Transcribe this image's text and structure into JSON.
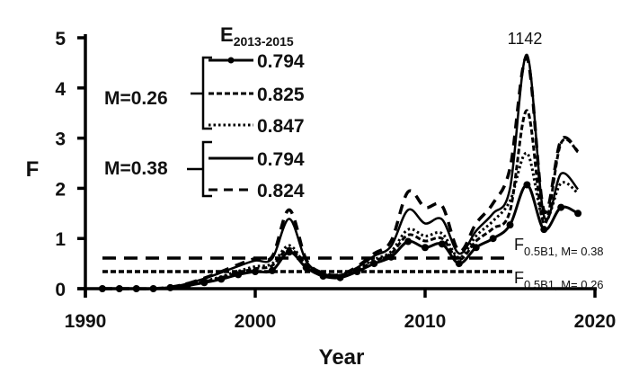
{
  "chart_data": {
    "type": "line",
    "title": "",
    "xlabel": "Year",
    "ylabel": "F",
    "xlim": [
      1990,
      2020
    ],
    "ylim": [
      0,
      5
    ],
    "xticks": [
      1990,
      2000,
      2010,
      2020
    ],
    "yticks": [
      0,
      1,
      2,
      3,
      4,
      5
    ],
    "grid": false,
    "legend_title": "E2013-2015",
    "legend_title_main": "E",
    "legend_title_sub": "2013-2015",
    "legend_position": "upper-left",
    "x": [
      1991,
      1992,
      1993,
      1994,
      1995,
      1996,
      1997,
      1998,
      1999,
      2000,
      2001,
      2002,
      2003,
      2004,
      2005,
      2006,
      2007,
      2008,
      2009,
      2010,
      2011,
      2012,
      2013,
      2014,
      2015,
      2016,
      2017,
      2018,
      2019
    ],
    "series": [
      {
        "name": "M=0.26, E=0.794",
        "group": "M=0.26",
        "e_label": "0.794",
        "style": "solid-markers",
        "values": [
          0,
          0,
          0,
          0,
          0.02,
          0.06,
          0.12,
          0.19,
          0.28,
          0.34,
          0.36,
          0.73,
          0.42,
          0.25,
          0.22,
          0.34,
          0.5,
          0.63,
          0.94,
          0.82,
          0.89,
          0.5,
          0.82,
          1.0,
          1.27,
          2.07,
          1.18,
          1.62,
          1.5
        ]
      },
      {
        "name": "M=0.26, E=0.825",
        "group": "M=0.26",
        "e_label": "0.825",
        "style": "short-dash",
        "values": [
          0,
          0,
          0,
          0,
          0.02,
          0.07,
          0.14,
          0.22,
          0.32,
          0.4,
          0.46,
          0.8,
          0.45,
          0.27,
          0.24,
          0.37,
          0.55,
          0.7,
          1.07,
          0.95,
          1.0,
          0.58,
          0.95,
          1.2,
          1.55,
          3.55,
          1.3,
          2.9,
          2.73
        ]
      },
      {
        "name": "M=0.26, E=0.847",
        "group": "M=0.26",
        "e_label": "0.847",
        "style": "dotted",
        "values": [
          0,
          0,
          0,
          0,
          0.02,
          0.07,
          0.15,
          0.24,
          0.35,
          0.44,
          0.5,
          0.86,
          0.47,
          0.28,
          0.25,
          0.39,
          0.58,
          0.74,
          1.18,
          1.05,
          1.1,
          0.62,
          1.05,
          1.35,
          1.75,
          2.7,
          1.35,
          2.1,
          1.9
        ]
      },
      {
        "name": "M=0.38, E=0.794",
        "group": "M=0.38",
        "e_label": "0.794",
        "style": "solid",
        "values": [
          0,
          0,
          0,
          0,
          0.03,
          0.1,
          0.2,
          0.32,
          0.45,
          0.56,
          0.6,
          1.39,
          0.55,
          0.3,
          0.27,
          0.42,
          0.65,
          0.85,
          1.57,
          1.3,
          1.38,
          0.7,
          1.15,
          1.5,
          2.0,
          4.66,
          1.45,
          2.29,
          1.98
        ]
      },
      {
        "name": "M=0.38, E=0.824",
        "group": "M=0.38",
        "e_label": "0.824",
        "style": "long-dash",
        "values": [
          0,
          0,
          0,
          0,
          0.03,
          0.1,
          0.21,
          0.34,
          0.48,
          0.6,
          0.64,
          1.57,
          0.58,
          0.31,
          0.28,
          0.44,
          0.7,
          0.95,
          1.93,
          1.62,
          1.65,
          0.75,
          1.3,
          1.7,
          2.4,
          4.6,
          1.55,
          2.96,
          2.73
        ]
      }
    ],
    "reference_lines": [
      {
        "label_main": "F",
        "label_sub": "0.5B1, M= 0.38",
        "value": 0.61,
        "style": "long-dash"
      },
      {
        "label_main": "F",
        "label_sub": "0.5B1, M= 0.26",
        "value": 0.34,
        "style": "short-dash"
      }
    ],
    "annotations": [
      {
        "text": "1142",
        "x": 2016,
        "note": "off-scale peak label"
      }
    ],
    "legend_groups": [
      {
        "label": "M=0.26",
        "entries": [
          "0.794",
          "0.825",
          "0.847"
        ]
      },
      {
        "label": "M=0.38",
        "entries": [
          "0.794",
          "0.824"
        ]
      }
    ]
  }
}
